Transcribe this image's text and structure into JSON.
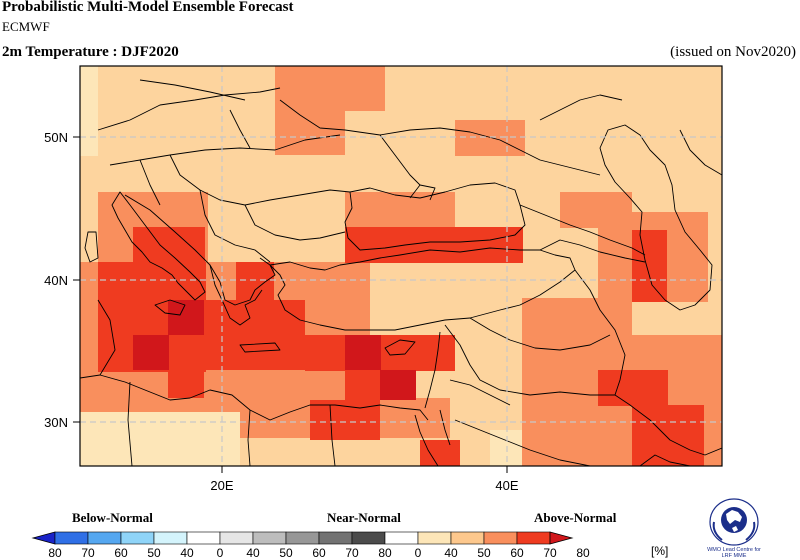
{
  "header": {
    "title": "Probabilistic Multi-Model Ensemble Forecast",
    "center": "ECMWF",
    "variable": "2m Temperature : DJF2020",
    "issued": "(issued on Nov2020)"
  },
  "map": {
    "lon_range": [
      10,
      55
    ],
    "lat_range": [
      27,
      55
    ],
    "lat_ticks": [
      {
        "label": "50N",
        "value": 50
      },
      {
        "label": "40N",
        "value": 40
      },
      {
        "label": "30N",
        "value": 30
      }
    ],
    "lon_ticks": [
      {
        "label": "20E",
        "value": 20
      },
      {
        "label": "40E",
        "value": 40
      }
    ],
    "gridline_style": "dashed-gray"
  },
  "legend": {
    "categories": [
      "Below-Normal",
      "Near-Normal",
      "Above-Normal"
    ],
    "labels": [
      "80",
      "70",
      "60",
      "50",
      "40",
      "0",
      "40",
      "50",
      "60",
      "70",
      "80",
      "0",
      "40",
      "50",
      "60",
      "70",
      "80"
    ],
    "unit": "[%]",
    "colors": [
      "#1a23c8",
      "#2f6fe6",
      "#55a7f0",
      "#8fd4f8",
      "#d4f4fc",
      "#ffffff",
      "#e6e6e6",
      "#bdbdbd",
      "#979797",
      "#727272",
      "#4b4b4b",
      "#ffffff",
      "#fde6b8",
      "#fdc88d",
      "#f98f5d",
      "#ef3b20",
      "#d1171b"
    ]
  },
  "logo": {
    "line1": "WMO Lead Centre for",
    "line2": "LRF MME"
  }
}
